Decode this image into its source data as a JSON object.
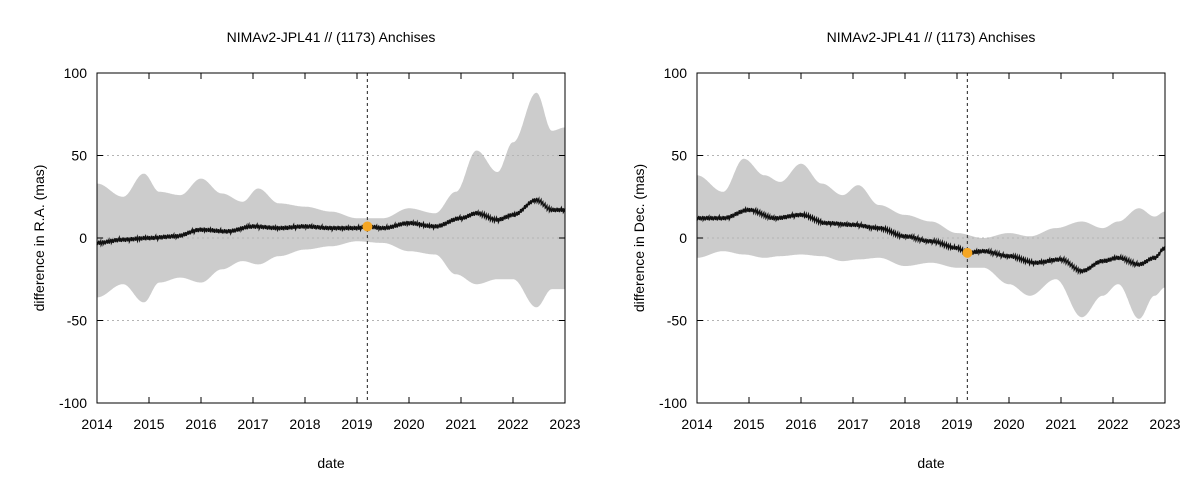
{
  "chart_data": [
    {
      "type": "line",
      "title": "NIMAv2-JPL41 // (1173) Anchises",
      "xlabel": "date",
      "ylabel": "difference in R.A. (mas)",
      "xlim": [
        2014,
        2023
      ],
      "ylim": [
        -100,
        100
      ],
      "x_ticks": [
        "2014",
        "2015",
        "2016",
        "2017",
        "2018",
        "2019",
        "2020",
        "2021",
        "2022",
        "2023"
      ],
      "y_ticks": [
        "-100",
        "-50",
        "0",
        "50",
        "100"
      ],
      "grid": "horizontal dashed at -50, 0, 50",
      "reference_date": 2019.2,
      "marker": {
        "x": 2019.2,
        "y": 7,
        "color": "#f5a623"
      },
      "series": [
        {
          "role": "uncertainty-band",
          "color": "#cccccc",
          "x": [
            2014,
            2014.5,
            2014.9,
            2015.2,
            2015.6,
            2016,
            2016.4,
            2016.8,
            2017.1,
            2017.5,
            2018,
            2018.5,
            2019,
            2019.5,
            2020,
            2020.5,
            2020.9,
            2021.3,
            2021.7,
            2022,
            2022.45,
            2022.75,
            2023
          ],
          "upper": [
            33,
            25,
            39,
            28,
            26,
            36,
            27,
            22,
            30,
            21,
            19,
            16,
            12,
            12,
            18,
            15,
            28,
            53,
            40,
            58,
            88,
            65,
            67
          ],
          "lower": [
            -36,
            -28,
            -39,
            -27,
            -24,
            -27,
            -19,
            -14,
            -16,
            -11,
            -7,
            -5,
            -2,
            -3,
            -8,
            -10,
            -22,
            -28,
            -25,
            -25,
            -42,
            -31,
            -31
          ]
        },
        {
          "role": "difference",
          "color": "#111111",
          "x": [
            2014,
            2014.5,
            2015,
            2015.5,
            2016,
            2016.5,
            2017,
            2017.5,
            2018,
            2018.5,
            2019,
            2019.2,
            2019.5,
            2020,
            2020.5,
            2021,
            2021.3,
            2021.7,
            2022,
            2022.45,
            2022.75,
            2023
          ],
          "y": [
            -3,
            -1,
            0,
            1,
            5,
            4,
            7,
            6,
            7,
            6,
            6,
            7,
            6,
            9,
            7,
            12,
            15,
            11,
            14,
            23,
            17,
            17
          ]
        }
      ]
    },
    {
      "type": "line",
      "title": "NIMAv2-JPL41 // (1173) Anchises",
      "xlabel": "date",
      "ylabel": "difference in Dec. (mas)",
      "xlim": [
        2014,
        2023
      ],
      "ylim": [
        -100,
        100
      ],
      "x_ticks": [
        "2014",
        "2015",
        "2016",
        "2017",
        "2018",
        "2019",
        "2020",
        "2021",
        "2022",
        "2023"
      ],
      "y_ticks": [
        "-100",
        "-50",
        "0",
        "50",
        "100"
      ],
      "grid": "horizontal dashed at -50, 0, 50",
      "reference_date": 2019.2,
      "marker": {
        "x": 2019.2,
        "y": -9,
        "color": "#f5a623"
      },
      "series": [
        {
          "role": "uncertainty-band",
          "color": "#cccccc",
          "x": [
            2014,
            2014.5,
            2014.9,
            2015.3,
            2015.6,
            2016,
            2016.4,
            2016.8,
            2017.1,
            2017.5,
            2018,
            2018.5,
            2019,
            2019.5,
            2020,
            2020.4,
            2020.9,
            2021.4,
            2021.8,
            2022.1,
            2022.5,
            2022.8,
            2023
          ],
          "upper": [
            38,
            28,
            48,
            38,
            34,
            45,
            33,
            26,
            32,
            20,
            14,
            10,
            3,
            0,
            3,
            1,
            6,
            10,
            6,
            10,
            18,
            13,
            16
          ],
          "lower": [
            -12,
            -8,
            -10,
            -12,
            -11,
            -10,
            -11,
            -14,
            -13,
            -12,
            -17,
            -15,
            -18,
            -18,
            -28,
            -35,
            -25,
            -48,
            -35,
            -28,
            -49,
            -35,
            -30
          ]
        },
        {
          "role": "difference",
          "color": "#111111",
          "x": [
            2014,
            2014.5,
            2015,
            2015.5,
            2016,
            2016.5,
            2017,
            2017.5,
            2018,
            2018.5,
            2019,
            2019.2,
            2019.5,
            2020,
            2020.5,
            2021,
            2021.4,
            2021.8,
            2022.1,
            2022.5,
            2022.8,
            2023
          ],
          "y": [
            12,
            12,
            17,
            12,
            14,
            9,
            8,
            6,
            1,
            -2,
            -6,
            -9,
            -8,
            -11,
            -15,
            -13,
            -20,
            -14,
            -12,
            -16,
            -12,
            -6
          ]
        }
      ]
    }
  ]
}
